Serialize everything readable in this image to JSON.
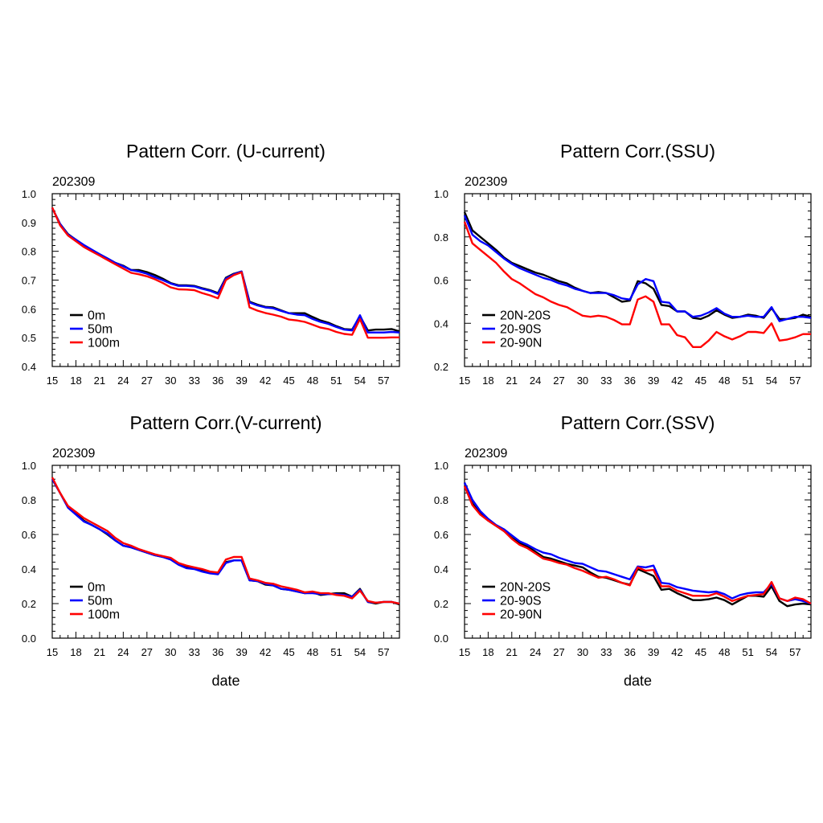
{
  "chart_data": [
    {
      "type": "line",
      "title": "Pattern Corr. (U-current)",
      "subtitle": "202309",
      "xlabel": "",
      "ylabel": "",
      "xlim": [
        15,
        59
      ],
      "ylim": [
        0.4,
        1.0
      ],
      "xticks": [
        15,
        18,
        21,
        24,
        27,
        30,
        33,
        36,
        39,
        42,
        45,
        48,
        51,
        54,
        57
      ],
      "yticks": [
        0.4,
        0.5,
        0.6,
        0.7,
        0.8,
        0.9,
        1.0
      ],
      "ytick_labels": [
        "0.4",
        "0.5",
        "0.6",
        "0.7",
        "0.8",
        "0.9",
        "1.0"
      ],
      "legend_position": "bottom-left",
      "x": [
        15,
        16,
        17,
        18,
        19,
        20,
        21,
        22,
        23,
        24,
        25,
        26,
        27,
        28,
        29,
        30,
        31,
        32,
        33,
        34,
        35,
        36,
        37,
        38,
        39,
        40,
        41,
        42,
        43,
        44,
        45,
        46,
        47,
        48,
        49,
        50,
        51,
        52,
        53,
        54,
        55,
        56,
        57,
        58,
        59
      ],
      "series": [
        {
          "name": "0m",
          "color": "#000000",
          "values": [
            0.95,
            0.895,
            0.86,
            0.84,
            0.82,
            0.805,
            0.79,
            0.775,
            0.76,
            0.75,
            0.735,
            0.735,
            0.728,
            0.718,
            0.705,
            0.69,
            0.682,
            0.682,
            0.68,
            0.672,
            0.665,
            0.655,
            0.708,
            0.722,
            0.73,
            0.625,
            0.615,
            0.607,
            0.605,
            0.595,
            0.585,
            0.585,
            0.585,
            0.572,
            0.56,
            0.552,
            0.54,
            0.53,
            0.528,
            0.575,
            0.525,
            0.528,
            0.528,
            0.53,
            0.522
          ]
        },
        {
          "name": "50m",
          "color": "#0000ff",
          "values": [
            0.95,
            0.895,
            0.858,
            0.84,
            0.822,
            0.806,
            0.79,
            0.775,
            0.76,
            0.748,
            0.735,
            0.73,
            0.722,
            0.71,
            0.7,
            0.688,
            0.68,
            0.68,
            0.678,
            0.67,
            0.663,
            0.652,
            0.705,
            0.72,
            0.73,
            0.622,
            0.612,
            0.605,
            0.602,
            0.593,
            0.585,
            0.58,
            0.578,
            0.565,
            0.555,
            0.548,
            0.537,
            0.528,
            0.525,
            0.578,
            0.518,
            0.518,
            0.518,
            0.52,
            0.518
          ]
        },
        {
          "name": "100m",
          "color": "#ff0000",
          "values": [
            0.952,
            0.89,
            0.855,
            0.835,
            0.815,
            0.8,
            0.785,
            0.77,
            0.755,
            0.74,
            0.725,
            0.72,
            0.713,
            0.703,
            0.69,
            0.675,
            0.668,
            0.667,
            0.665,
            0.655,
            0.647,
            0.637,
            0.7,
            0.717,
            0.727,
            0.605,
            0.594,
            0.586,
            0.58,
            0.573,
            0.563,
            0.56,
            0.555,
            0.545,
            0.535,
            0.53,
            0.52,
            0.513,
            0.51,
            0.565,
            0.5,
            0.5,
            0.5,
            0.501,
            0.501
          ]
        }
      ]
    },
    {
      "type": "line",
      "title": "Pattern Corr.(SSU)",
      "subtitle": "202309",
      "xlabel": "",
      "ylabel": "",
      "xlim": [
        15,
        59
      ],
      "ylim": [
        0.2,
        1.0
      ],
      "xticks": [
        15,
        18,
        21,
        24,
        27,
        30,
        33,
        36,
        39,
        42,
        45,
        48,
        51,
        54,
        57
      ],
      "yticks": [
        0.2,
        0.4,
        0.6,
        0.8,
        1.0
      ],
      "ytick_labels": [
        "0.2",
        "0.4",
        "0.6",
        "0.8",
        "1.0"
      ],
      "legend_position": "bottom-left",
      "x": [
        15,
        16,
        17,
        18,
        19,
        20,
        21,
        22,
        23,
        24,
        25,
        26,
        27,
        28,
        29,
        30,
        31,
        32,
        33,
        34,
        35,
        36,
        37,
        38,
        39,
        40,
        41,
        42,
        43,
        44,
        45,
        46,
        47,
        48,
        49,
        50,
        51,
        52,
        53,
        54,
        55,
        56,
        57,
        58,
        59
      ],
      "series": [
        {
          "name": "20N-20S",
          "color": "#000000",
          "values": [
            0.915,
            0.83,
            0.8,
            0.77,
            0.74,
            0.705,
            0.68,
            0.665,
            0.65,
            0.635,
            0.625,
            0.61,
            0.595,
            0.585,
            0.565,
            0.55,
            0.54,
            0.545,
            0.54,
            0.52,
            0.5,
            0.505,
            0.595,
            0.585,
            0.56,
            0.485,
            0.48,
            0.455,
            0.455,
            0.425,
            0.42,
            0.435,
            0.46,
            0.44,
            0.425,
            0.43,
            0.44,
            0.435,
            0.425,
            0.47,
            0.42,
            0.42,
            0.425,
            0.44,
            0.43
          ]
        },
        {
          "name": "20-90S",
          "color": "#0000ff",
          "values": [
            0.9,
            0.81,
            0.78,
            0.76,
            0.73,
            0.7,
            0.675,
            0.655,
            0.64,
            0.625,
            0.61,
            0.6,
            0.585,
            0.575,
            0.56,
            0.55,
            0.54,
            0.54,
            0.54,
            0.53,
            0.515,
            0.51,
            0.58,
            0.605,
            0.595,
            0.5,
            0.495,
            0.455,
            0.455,
            0.43,
            0.435,
            0.45,
            0.47,
            0.445,
            0.43,
            0.43,
            0.435,
            0.43,
            0.43,
            0.475,
            0.41,
            0.42,
            0.43,
            0.43,
            0.425
          ]
        },
        {
          "name": "20-90N",
          "color": "#ff0000",
          "values": [
            0.87,
            0.77,
            0.74,
            0.71,
            0.68,
            0.64,
            0.605,
            0.585,
            0.56,
            0.535,
            0.52,
            0.5,
            0.485,
            0.475,
            0.455,
            0.435,
            0.43,
            0.435,
            0.43,
            0.415,
            0.395,
            0.395,
            0.51,
            0.525,
            0.5,
            0.395,
            0.395,
            0.345,
            0.335,
            0.29,
            0.29,
            0.32,
            0.36,
            0.34,
            0.325,
            0.34,
            0.36,
            0.36,
            0.355,
            0.4,
            0.32,
            0.325,
            0.335,
            0.35,
            0.35
          ]
        }
      ]
    },
    {
      "type": "line",
      "title": "Pattern Corr.(V-current)",
      "subtitle": "202309",
      "xlabel": "date",
      "ylabel": "",
      "xlim": [
        15,
        59
      ],
      "ylim": [
        0.0,
        1.0
      ],
      "xticks": [
        15,
        18,
        21,
        24,
        27,
        30,
        33,
        36,
        39,
        42,
        45,
        48,
        51,
        54,
        57
      ],
      "yticks": [
        0.0,
        0.2,
        0.4,
        0.6,
        0.8,
        1.0
      ],
      "ytick_labels": [
        "0.0",
        "0.2",
        "0.4",
        "0.6",
        "0.8",
        "1.0"
      ],
      "legend_position": "bottom-left",
      "x": [
        15,
        16,
        17,
        18,
        19,
        20,
        21,
        22,
        23,
        24,
        25,
        26,
        27,
        28,
        29,
        30,
        31,
        32,
        33,
        34,
        35,
        36,
        37,
        38,
        39,
        40,
        41,
        42,
        43,
        44,
        45,
        46,
        47,
        48,
        49,
        50,
        51,
        52,
        53,
        54,
        55,
        56,
        57,
        58,
        59
      ],
      "series": [
        {
          "name": "0m",
          "color": "#000000",
          "values": [
            0.92,
            0.84,
            0.76,
            0.72,
            0.68,
            0.655,
            0.63,
            0.6,
            0.565,
            0.535,
            0.525,
            0.51,
            0.495,
            0.48,
            0.47,
            0.46,
            0.43,
            0.41,
            0.405,
            0.395,
            0.38,
            0.375,
            0.44,
            0.45,
            0.45,
            0.335,
            0.33,
            0.31,
            0.305,
            0.285,
            0.28,
            0.27,
            0.26,
            0.265,
            0.25,
            0.255,
            0.26,
            0.26,
            0.24,
            0.285,
            0.21,
            0.2,
            0.21,
            0.21,
            0.195
          ]
        },
        {
          "name": "50m",
          "color": "#0000ff",
          "values": [
            0.92,
            0.84,
            0.755,
            0.715,
            0.675,
            0.655,
            0.63,
            0.605,
            0.565,
            0.535,
            0.525,
            0.51,
            0.495,
            0.48,
            0.47,
            0.455,
            0.425,
            0.405,
            0.4,
            0.385,
            0.375,
            0.37,
            0.435,
            0.45,
            0.45,
            0.335,
            0.33,
            0.315,
            0.305,
            0.285,
            0.28,
            0.27,
            0.26,
            0.26,
            0.255,
            0.255,
            0.255,
            0.25,
            0.24,
            0.28,
            0.21,
            0.205,
            0.21,
            0.21,
            0.2
          ]
        },
        {
          "name": "100m",
          "color": "#ff0000",
          "values": [
            0.93,
            0.84,
            0.765,
            0.73,
            0.695,
            0.67,
            0.645,
            0.62,
            0.58,
            0.55,
            0.535,
            0.515,
            0.5,
            0.485,
            0.475,
            0.465,
            0.435,
            0.42,
            0.41,
            0.4,
            0.385,
            0.38,
            0.455,
            0.47,
            0.47,
            0.345,
            0.335,
            0.32,
            0.315,
            0.3,
            0.29,
            0.28,
            0.265,
            0.27,
            0.26,
            0.26,
            0.25,
            0.245,
            0.23,
            0.275,
            0.215,
            0.205,
            0.21,
            0.21,
            0.2
          ]
        }
      ]
    },
    {
      "type": "line",
      "title": "Pattern Corr.(SSV)",
      "subtitle": "202309",
      "xlabel": "date",
      "ylabel": "",
      "xlim": [
        15,
        59
      ],
      "ylim": [
        0.0,
        1.0
      ],
      "xticks": [
        15,
        18,
        21,
        24,
        27,
        30,
        33,
        36,
        39,
        42,
        45,
        48,
        51,
        54,
        57
      ],
      "yticks": [
        0.0,
        0.2,
        0.4,
        0.6,
        0.8,
        1.0
      ],
      "ytick_labels": [
        "0.0",
        "0.2",
        "0.4",
        "0.6",
        "0.8",
        "1.0"
      ],
      "legend_position": "bottom-left",
      "x": [
        15,
        16,
        17,
        18,
        19,
        20,
        21,
        22,
        23,
        24,
        25,
        26,
        27,
        28,
        29,
        30,
        31,
        32,
        33,
        34,
        35,
        36,
        37,
        38,
        39,
        40,
        41,
        42,
        43,
        44,
        45,
        46,
        47,
        48,
        49,
        50,
        51,
        52,
        53,
        54,
        55,
        56,
        57,
        58,
        59
      ],
      "series": [
        {
          "name": "20N-20S",
          "color": "#000000",
          "values": [
            0.9,
            0.78,
            0.72,
            0.68,
            0.65,
            0.62,
            0.58,
            0.55,
            0.53,
            0.5,
            0.47,
            0.46,
            0.445,
            0.43,
            0.42,
            0.41,
            0.38,
            0.355,
            0.35,
            0.335,
            0.32,
            0.31,
            0.4,
            0.38,
            0.36,
            0.28,
            0.285,
            0.26,
            0.24,
            0.22,
            0.22,
            0.225,
            0.235,
            0.22,
            0.195,
            0.22,
            0.245,
            0.245,
            0.24,
            0.3,
            0.215,
            0.185,
            0.195,
            0.2,
            0.195
          ]
        },
        {
          "name": "20-90S",
          "color": "#0000ff",
          "values": [
            0.9,
            0.8,
            0.735,
            0.69,
            0.655,
            0.63,
            0.595,
            0.56,
            0.54,
            0.515,
            0.495,
            0.485,
            0.465,
            0.45,
            0.435,
            0.43,
            0.41,
            0.39,
            0.385,
            0.37,
            0.355,
            0.34,
            0.415,
            0.41,
            0.42,
            0.32,
            0.315,
            0.295,
            0.285,
            0.275,
            0.27,
            0.265,
            0.27,
            0.255,
            0.23,
            0.25,
            0.26,
            0.265,
            0.265,
            0.315,
            0.23,
            0.215,
            0.225,
            0.215,
            0.2
          ]
        },
        {
          "name": "20-90N",
          "color": "#ff0000",
          "values": [
            0.88,
            0.77,
            0.715,
            0.68,
            0.65,
            0.62,
            0.575,
            0.54,
            0.52,
            0.49,
            0.46,
            0.45,
            0.435,
            0.425,
            0.405,
            0.39,
            0.37,
            0.35,
            0.355,
            0.34,
            0.32,
            0.305,
            0.41,
            0.39,
            0.395,
            0.3,
            0.3,
            0.275,
            0.26,
            0.245,
            0.245,
            0.245,
            0.26,
            0.24,
            0.215,
            0.23,
            0.245,
            0.25,
            0.255,
            0.325,
            0.23,
            0.215,
            0.235,
            0.225,
            0.2
          ]
        }
      ]
    }
  ]
}
